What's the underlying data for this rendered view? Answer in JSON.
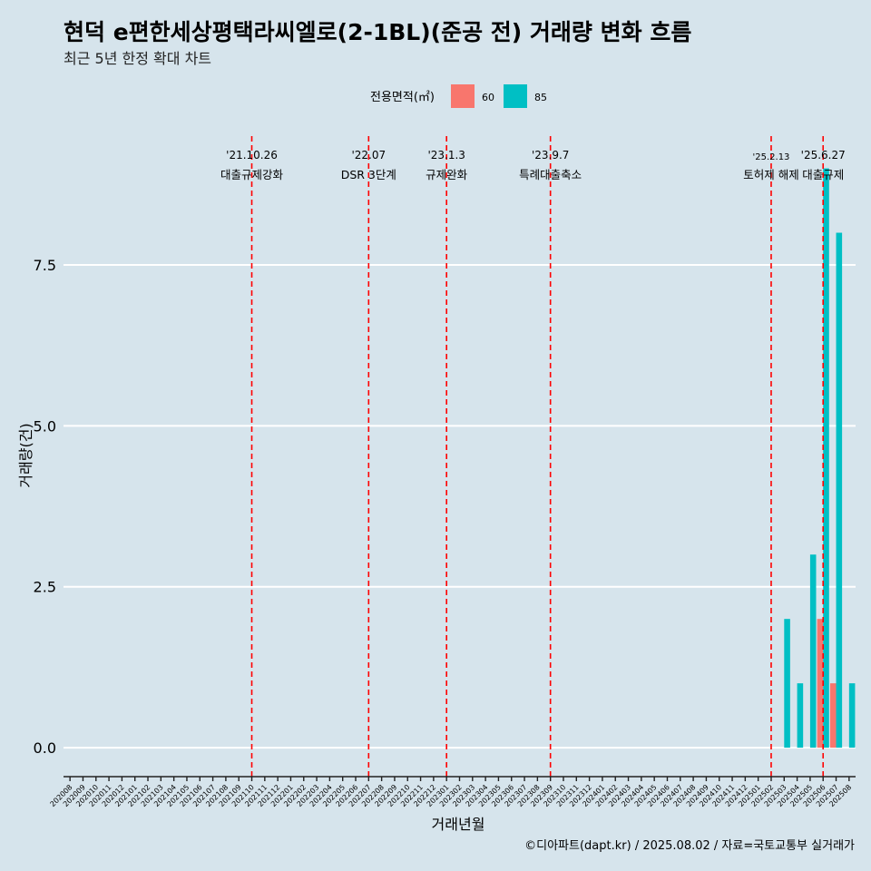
{
  "chart_data": {
    "type": "bar",
    "title": "현덕 e편한세상평택라씨엘로(2-1BL)(준공 전) 거래량 변화 흐름",
    "subtitle": "최근 5년 한정 확대 차트",
    "xlabel": "거래년월",
    "ylabel": "거래량(건)",
    "ylim": [
      -0.45,
      9.6
    ],
    "yticks": [
      0.0,
      2.5,
      5.0,
      7.5
    ],
    "ytick_labels": [
      "0.0",
      "2.5",
      "5.0",
      "7.5"
    ],
    "grid": true,
    "legend": {
      "title": "전용면적(㎡)",
      "position": "top"
    },
    "categories": [
      "202008",
      "202009",
      "202010",
      "202011",
      "202012",
      "202101",
      "202102",
      "202103",
      "202104",
      "202105",
      "202106",
      "202107",
      "202108",
      "202109",
      "202110",
      "202111",
      "202112",
      "202201",
      "202202",
      "202203",
      "202204",
      "202205",
      "202206",
      "202207",
      "202208",
      "202209",
      "202210",
      "202211",
      "202212",
      "202301",
      "202302",
      "202303",
      "202304",
      "202305",
      "202306",
      "202307",
      "202308",
      "202309",
      "202310",
      "202311",
      "202312",
      "202401",
      "202402",
      "202403",
      "202404",
      "202405",
      "202406",
      "202407",
      "202408",
      "202409",
      "202410",
      "202411",
      "202412",
      "202501",
      "202502",
      "202503",
      "202504",
      "202505",
      "202506",
      "202507",
      "202508"
    ],
    "series": [
      {
        "name": "60",
        "color": "#f8766d",
        "values": [
          0,
          0,
          0,
          0,
          0,
          0,
          0,
          0,
          0,
          0,
          0,
          0,
          0,
          0,
          0,
          0,
          0,
          0,
          0,
          0,
          0,
          0,
          0,
          0,
          0,
          0,
          0,
          0,
          0,
          0,
          0,
          0,
          0,
          0,
          0,
          0,
          0,
          0,
          0,
          0,
          0,
          0,
          0,
          0,
          0,
          0,
          0,
          0,
          0,
          0,
          0,
          0,
          0,
          0,
          0,
          0,
          0,
          0,
          2,
          1,
          0
        ]
      },
      {
        "name": "85",
        "color": "#00bfc4",
        "values": [
          0,
          0,
          0,
          0,
          0,
          0,
          0,
          0,
          0,
          0,
          0,
          0,
          0,
          0,
          0,
          0,
          0,
          0,
          0,
          0,
          0,
          0,
          0,
          0,
          0,
          0,
          0,
          0,
          0,
          0,
          0,
          0,
          0,
          0,
          0,
          0,
          0,
          0,
          0,
          0,
          0,
          0,
          0,
          0,
          0,
          0,
          0,
          0,
          0,
          0,
          0,
          0,
          0,
          0,
          0,
          2,
          1,
          3,
          9,
          8,
          1
        ]
      }
    ],
    "events": [
      {
        "date": "'21.10.26",
        "label": "대출규제강화",
        "month": "202110"
      },
      {
        "date": "'22.07",
        "label": "DSR 3단계",
        "month": "202207"
      },
      {
        "date": "'23.1.3",
        "label": "규제완화",
        "month": "202301"
      },
      {
        "date": "'23.9.7",
        "label": "특례대출축소",
        "month": "202309"
      },
      {
        "date": "'25.2.13",
        "label": "토허제 해제",
        "month": "202502"
      },
      {
        "date": "'25.6.27",
        "label": "대출규제",
        "month": "202506"
      }
    ],
    "event_line_color": "#ff0000",
    "caption": "©디아파트(dapt.kr) / 2025.08.02 / 자료=국토교통부 실거래가"
  }
}
